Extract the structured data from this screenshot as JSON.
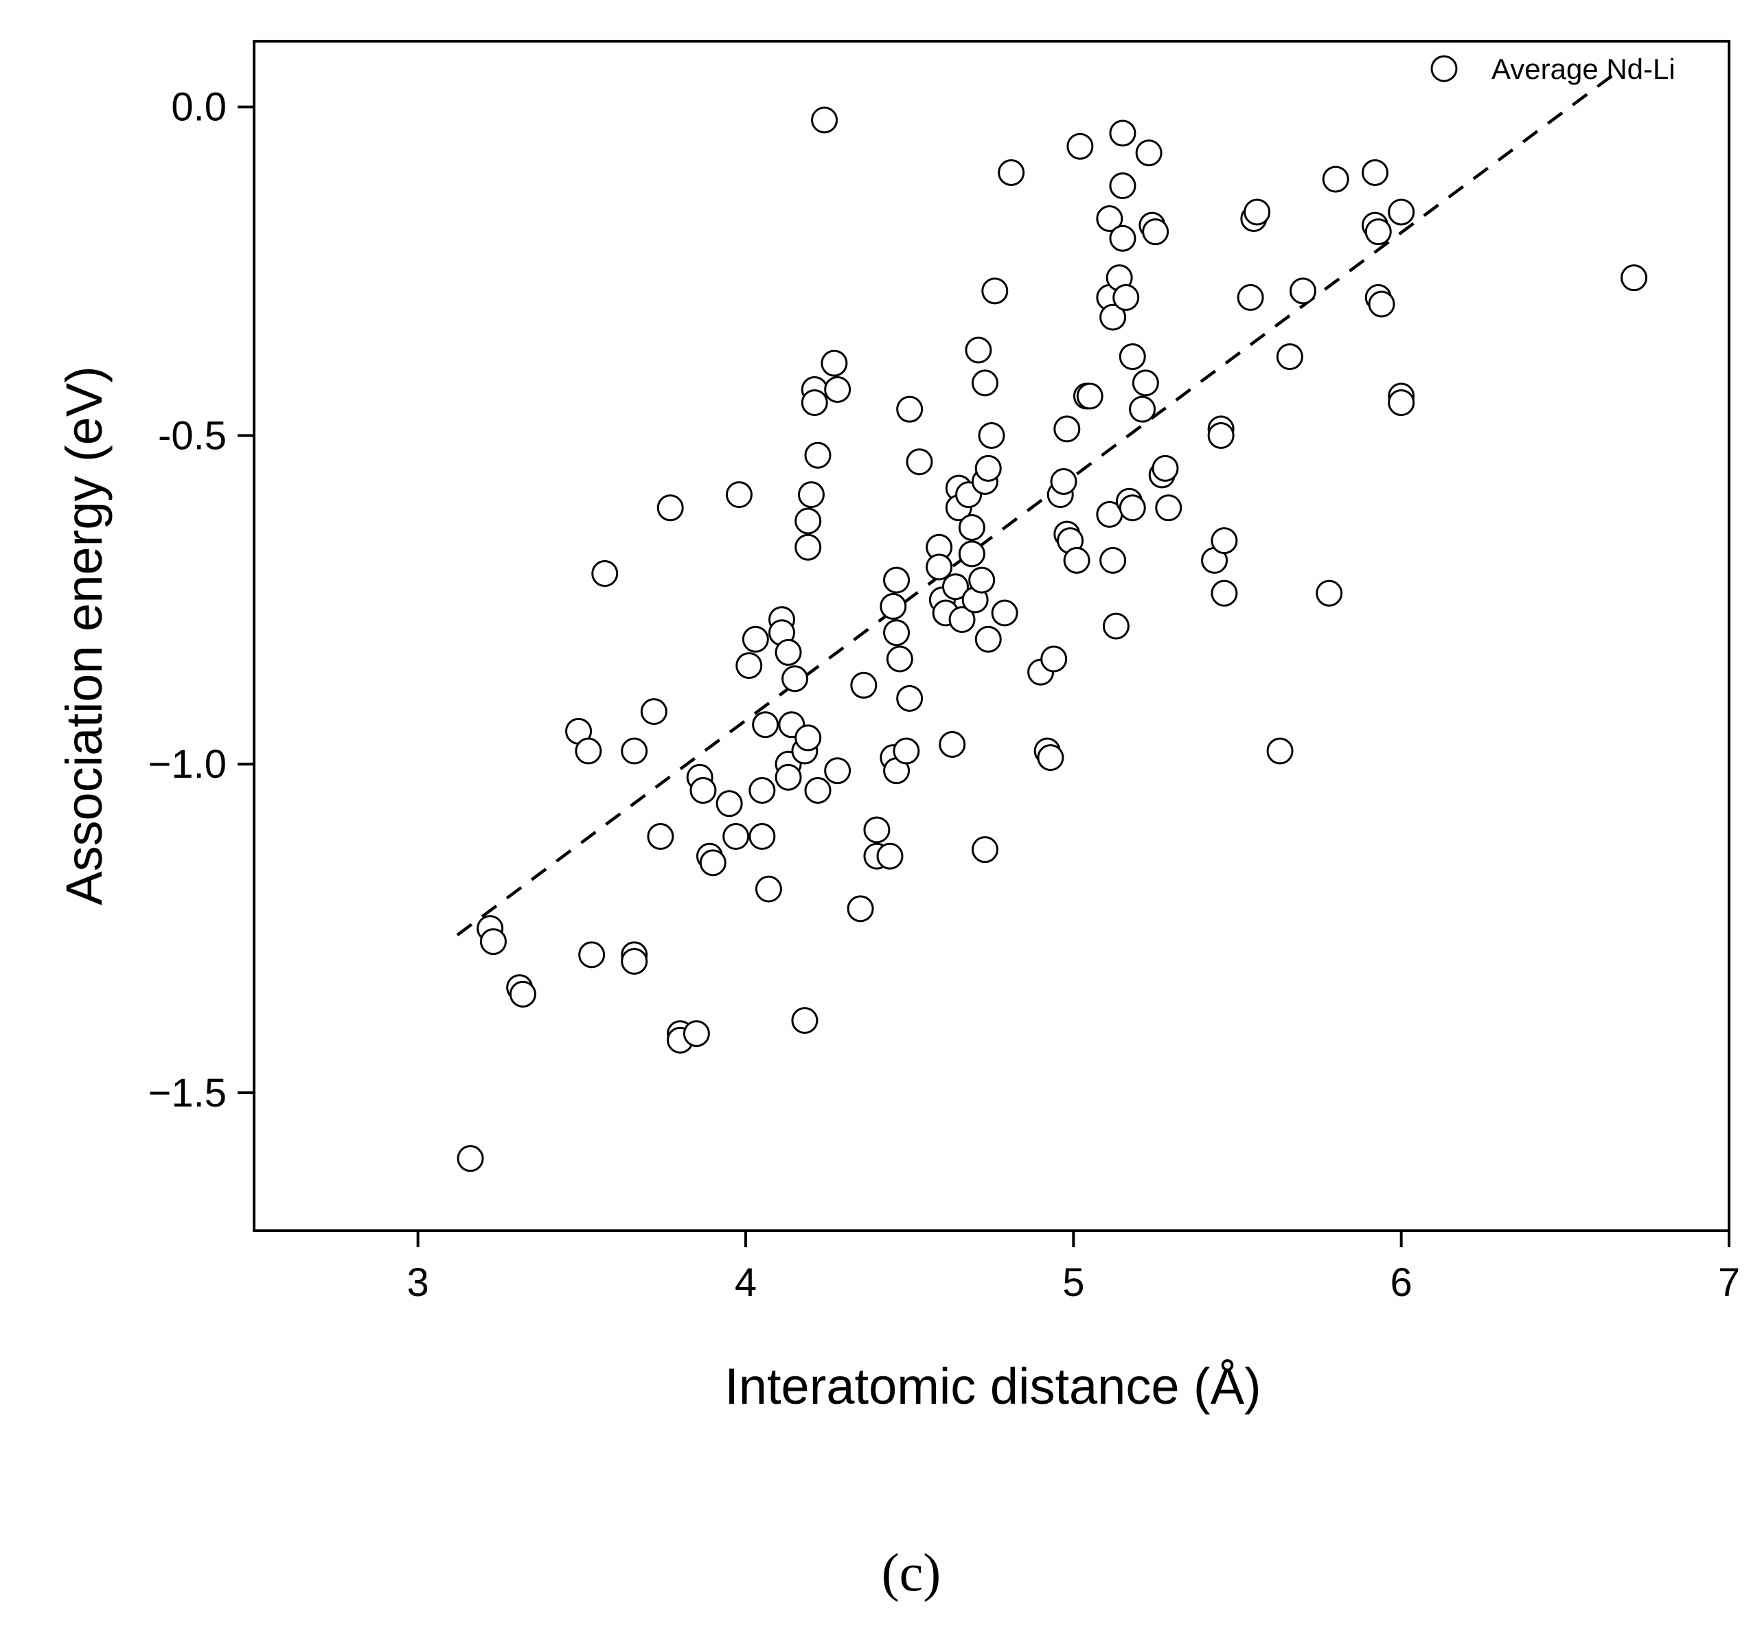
{
  "chart_data": {
    "type": "scatter",
    "xlabel": "Interatomic distance (Å)",
    "ylabel": "Association energy (eV)",
    "xlim": [
      2.5,
      7.0
    ],
    "ylim": [
      -1.71,
      0.1
    ],
    "xticks": [
      3,
      4,
      5,
      6,
      7
    ],
    "xtick_labels": [
      "3",
      "4",
      "5",
      "6",
      "7"
    ],
    "yticks": [
      0.0,
      -0.5,
      -1.0,
      -1.5
    ],
    "ytick_labels": [
      "0.0",
      "-0.5",
      "−1.0",
      "−1.5"
    ],
    "grid": false,
    "legend_position": "top-right",
    "series": [
      {
        "name": "Average Nd-Li",
        "marker": "open-circle",
        "points": [
          [
            3.16,
            -1.6
          ],
          [
            3.22,
            -1.25
          ],
          [
            3.23,
            -1.27
          ],
          [
            3.31,
            -1.34
          ],
          [
            3.32,
            -1.35
          ],
          [
            3.49,
            -0.95
          ],
          [
            3.52,
            -0.98
          ],
          [
            3.53,
            -1.29
          ],
          [
            3.57,
            -0.71
          ],
          [
            3.66,
            -0.98
          ],
          [
            3.66,
            -1.29
          ],
          [
            3.66,
            -1.3
          ],
          [
            3.72,
            -0.92
          ],
          [
            3.74,
            -1.11
          ],
          [
            3.77,
            -0.61
          ],
          [
            3.8,
            -1.41
          ],
          [
            3.8,
            -1.42
          ],
          [
            3.85,
            -1.41
          ],
          [
            3.86,
            -1.02
          ],
          [
            3.87,
            -1.04
          ],
          [
            3.89,
            -1.14
          ],
          [
            3.9,
            -1.15
          ],
          [
            3.95,
            -1.06
          ],
          [
            3.97,
            -1.11
          ],
          [
            3.98,
            -0.59
          ],
          [
            4.01,
            -0.85
          ],
          [
            4.03,
            -0.81
          ],
          [
            4.05,
            -1.04
          ],
          [
            4.05,
            -1.11
          ],
          [
            4.06,
            -0.94
          ],
          [
            4.07,
            -1.19
          ],
          [
            4.11,
            -0.78
          ],
          [
            4.11,
            -0.8
          ],
          [
            4.13,
            -0.83
          ],
          [
            4.13,
            -1.0
          ],
          [
            4.13,
            -1.02
          ],
          [
            4.14,
            -0.94
          ],
          [
            4.15,
            -0.87
          ],
          [
            4.18,
            -1.39
          ],
          [
            4.18,
            -0.98
          ],
          [
            4.19,
            -0.63
          ],
          [
            4.19,
            -0.96
          ],
          [
            4.19,
            -0.67
          ],
          [
            4.2,
            -0.59
          ],
          [
            4.21,
            -0.43
          ],
          [
            4.21,
            -0.45
          ],
          [
            4.22,
            -1.04
          ],
          [
            4.22,
            -0.53
          ],
          [
            4.24,
            -0.02
          ],
          [
            4.27,
            -0.39
          ],
          [
            4.28,
            -0.43
          ],
          [
            4.28,
            -1.01
          ],
          [
            4.35,
            -1.22
          ],
          [
            4.36,
            -0.88
          ],
          [
            4.4,
            -1.1
          ],
          [
            4.4,
            -1.14
          ],
          [
            4.44,
            -1.14
          ],
          [
            4.45,
            -0.76
          ],
          [
            4.45,
            -0.99
          ],
          [
            4.46,
            -1.01
          ],
          [
            4.46,
            -0.72
          ],
          [
            4.46,
            -0.8
          ],
          [
            4.47,
            -0.84
          ],
          [
            4.49,
            -0.98
          ],
          [
            4.5,
            -0.9
          ],
          [
            4.5,
            -0.46
          ],
          [
            4.53,
            -0.54
          ],
          [
            4.59,
            -0.67
          ],
          [
            4.59,
            -0.7
          ],
          [
            4.6,
            -0.75
          ],
          [
            4.61,
            -0.77
          ],
          [
            4.63,
            -0.97
          ],
          [
            4.64,
            -0.73
          ],
          [
            4.65,
            -0.58
          ],
          [
            4.65,
            -0.61
          ],
          [
            4.66,
            -0.78
          ],
          [
            4.68,
            -0.59
          ],
          [
            4.69,
            -0.64
          ],
          [
            4.69,
            -0.68
          ],
          [
            4.7,
            -0.75
          ],
          [
            4.71,
            -0.37
          ],
          [
            4.72,
            -0.72
          ],
          [
            4.73,
            -0.42
          ],
          [
            4.73,
            -0.57
          ],
          [
            4.73,
            -1.13
          ],
          [
            4.74,
            -0.81
          ],
          [
            4.74,
            -0.55
          ],
          [
            4.75,
            -0.5
          ],
          [
            4.76,
            -0.28
          ],
          [
            4.79,
            -0.77
          ],
          [
            4.81,
            -0.1
          ],
          [
            4.9,
            -0.86
          ],
          [
            4.92,
            -0.98
          ],
          [
            4.93,
            -0.99
          ],
          [
            4.94,
            -0.84
          ],
          [
            4.96,
            -0.59
          ],
          [
            4.97,
            -0.57
          ],
          [
            4.98,
            -0.49
          ],
          [
            4.98,
            -0.65
          ],
          [
            4.99,
            -0.66
          ],
          [
            5.01,
            -0.69
          ],
          [
            5.02,
            -0.06
          ],
          [
            5.04,
            -0.44
          ],
          [
            5.05,
            -0.44
          ],
          [
            5.11,
            -0.17
          ],
          [
            5.11,
            -0.29
          ],
          [
            5.11,
            -0.62
          ],
          [
            5.12,
            -0.32
          ],
          [
            5.12,
            -0.69
          ],
          [
            5.13,
            -0.79
          ],
          [
            5.14,
            -0.26
          ],
          [
            5.15,
            -0.04
          ],
          [
            5.15,
            -0.2
          ],
          [
            5.15,
            -0.12
          ],
          [
            5.16,
            -0.29
          ],
          [
            5.17,
            -0.6
          ],
          [
            5.18,
            -0.61
          ],
          [
            5.18,
            -0.38
          ],
          [
            5.21,
            -0.46
          ],
          [
            5.22,
            -0.42
          ],
          [
            5.23,
            -0.07
          ],
          [
            5.24,
            -0.18
          ],
          [
            5.25,
            -0.19
          ],
          [
            5.27,
            -0.56
          ],
          [
            5.28,
            -0.55
          ],
          [
            5.29,
            -0.61
          ],
          [
            5.43,
            -0.69
          ],
          [
            5.45,
            -0.49
          ],
          [
            5.45,
            -0.5
          ],
          [
            5.46,
            -0.74
          ],
          [
            5.46,
            -0.66
          ],
          [
            5.54,
            -0.29
          ],
          [
            5.55,
            -0.17
          ],
          [
            5.56,
            -0.16
          ],
          [
            5.63,
            -0.98
          ],
          [
            5.66,
            -0.38
          ],
          [
            5.7,
            -0.28
          ],
          [
            5.78,
            -0.74
          ],
          [
            5.8,
            -0.11
          ],
          [
            5.92,
            -0.1
          ],
          [
            5.92,
            -0.18
          ],
          [
            5.93,
            -0.19
          ],
          [
            5.93,
            -0.29
          ],
          [
            5.94,
            -0.3
          ],
          [
            6.0,
            -0.44
          ],
          [
            6.0,
            -0.45
          ],
          [
            6.0,
            -0.16
          ],
          [
            6.71,
            -0.26
          ]
        ]
      }
    ],
    "fit_line": {
      "style": "dashed",
      "x": [
        3.12,
        6.65
      ],
      "y": [
        -1.26,
        0.05
      ]
    }
  },
  "panel_label": "(c)"
}
